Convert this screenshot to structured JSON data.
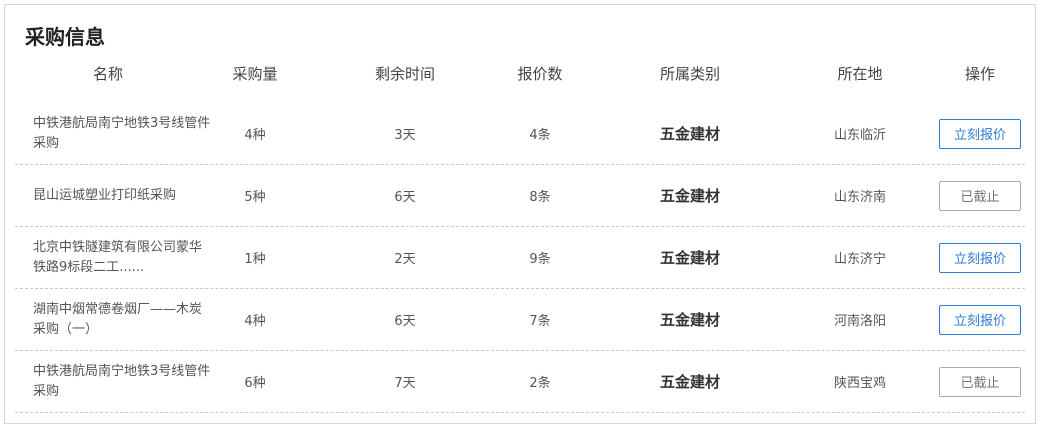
{
  "title": "采购信息",
  "columns": {
    "name": "名称",
    "qty": "采购量",
    "time": "剩余时间",
    "quotes": "报价数",
    "category": "所属类别",
    "location": "所在地",
    "action": "操作"
  },
  "rows": [
    {
      "name": "中铁港航局南宁地铁3号线管件采购",
      "qty": "4种",
      "time": "3天",
      "quotes": "4条",
      "category": "五金建材",
      "location": "山东临沂",
      "action": "立刻报价",
      "status": "open"
    },
    {
      "name": "昆山运城塑业打印纸采购",
      "qty": "5种",
      "time": "6天",
      "quotes": "8条",
      "category": "五金建材",
      "location": "山东济南",
      "action": "已截止",
      "status": "closed"
    },
    {
      "name": "北京中铁隧建筑有限公司蒙华铁路9标段二工......",
      "qty": "1种",
      "time": "2天",
      "quotes": "9条",
      "category": "五金建材",
      "location": "山东济宁",
      "action": "立刻报价",
      "status": "open"
    },
    {
      "name": "湖南中烟常德卷烟厂——木炭采购（一）",
      "qty": "4种",
      "time": "6天",
      "quotes": "7条",
      "category": "五金建材",
      "location": "河南洛阳",
      "action": "立刻报价",
      "status": "open"
    },
    {
      "name": "中铁港航局南宁地铁3号线管件采购",
      "qty": "6种",
      "time": "7天",
      "quotes": "2条",
      "category": "五金建材",
      "location": "陕西宝鸡",
      "action": "已截止",
      "status": "closed"
    }
  ],
  "colors": {
    "accent": "#2f7bd6",
    "closed": "#777777",
    "divider": "#c8c8c8"
  }
}
